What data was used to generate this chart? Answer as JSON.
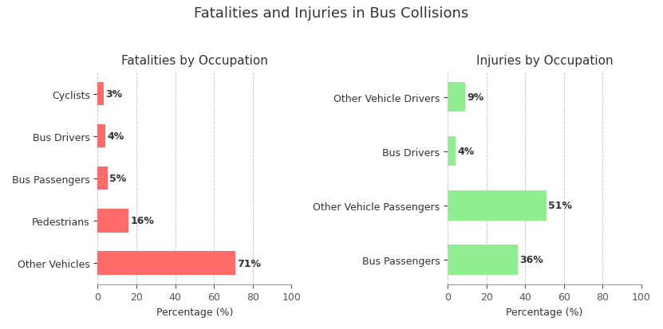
{
  "title": "Fatalities and Injuries in Bus Collisions",
  "left_chart": {
    "title": "Fatalities by Occupation",
    "categories": [
      "Cyclists",
      "Bus Drivers",
      "Bus Passengers",
      "Pedestrians",
      "Other Vehicles"
    ],
    "values": [
      3,
      4,
      5,
      16,
      71
    ],
    "bar_color": "#FF6B6B",
    "xlabel": "Percentage (%)",
    "xlim": [
      0,
      100
    ],
    "xticks": [
      0,
      20,
      40,
      60,
      80,
      100
    ]
  },
  "right_chart": {
    "title": "Injuries by Occupation",
    "categories": [
      "Other Vehicle Drivers",
      "Bus Drivers",
      "Other Vehicle Passengers",
      "Bus Passengers"
    ],
    "values": [
      9,
      4,
      51,
      36
    ],
    "bar_color": "#90EE90",
    "xlabel": "Percentage (%)",
    "xlim": [
      0,
      100
    ],
    "xticks": [
      0,
      20,
      40,
      60,
      80,
      100
    ]
  },
  "title_fontsize": 13,
  "subtitle_fontsize": 11,
  "label_fontsize": 9,
  "tick_fontsize": 9,
  "bar_label_fontsize": 9,
  "background_color": "#ffffff",
  "grid_color": "#cccccc"
}
